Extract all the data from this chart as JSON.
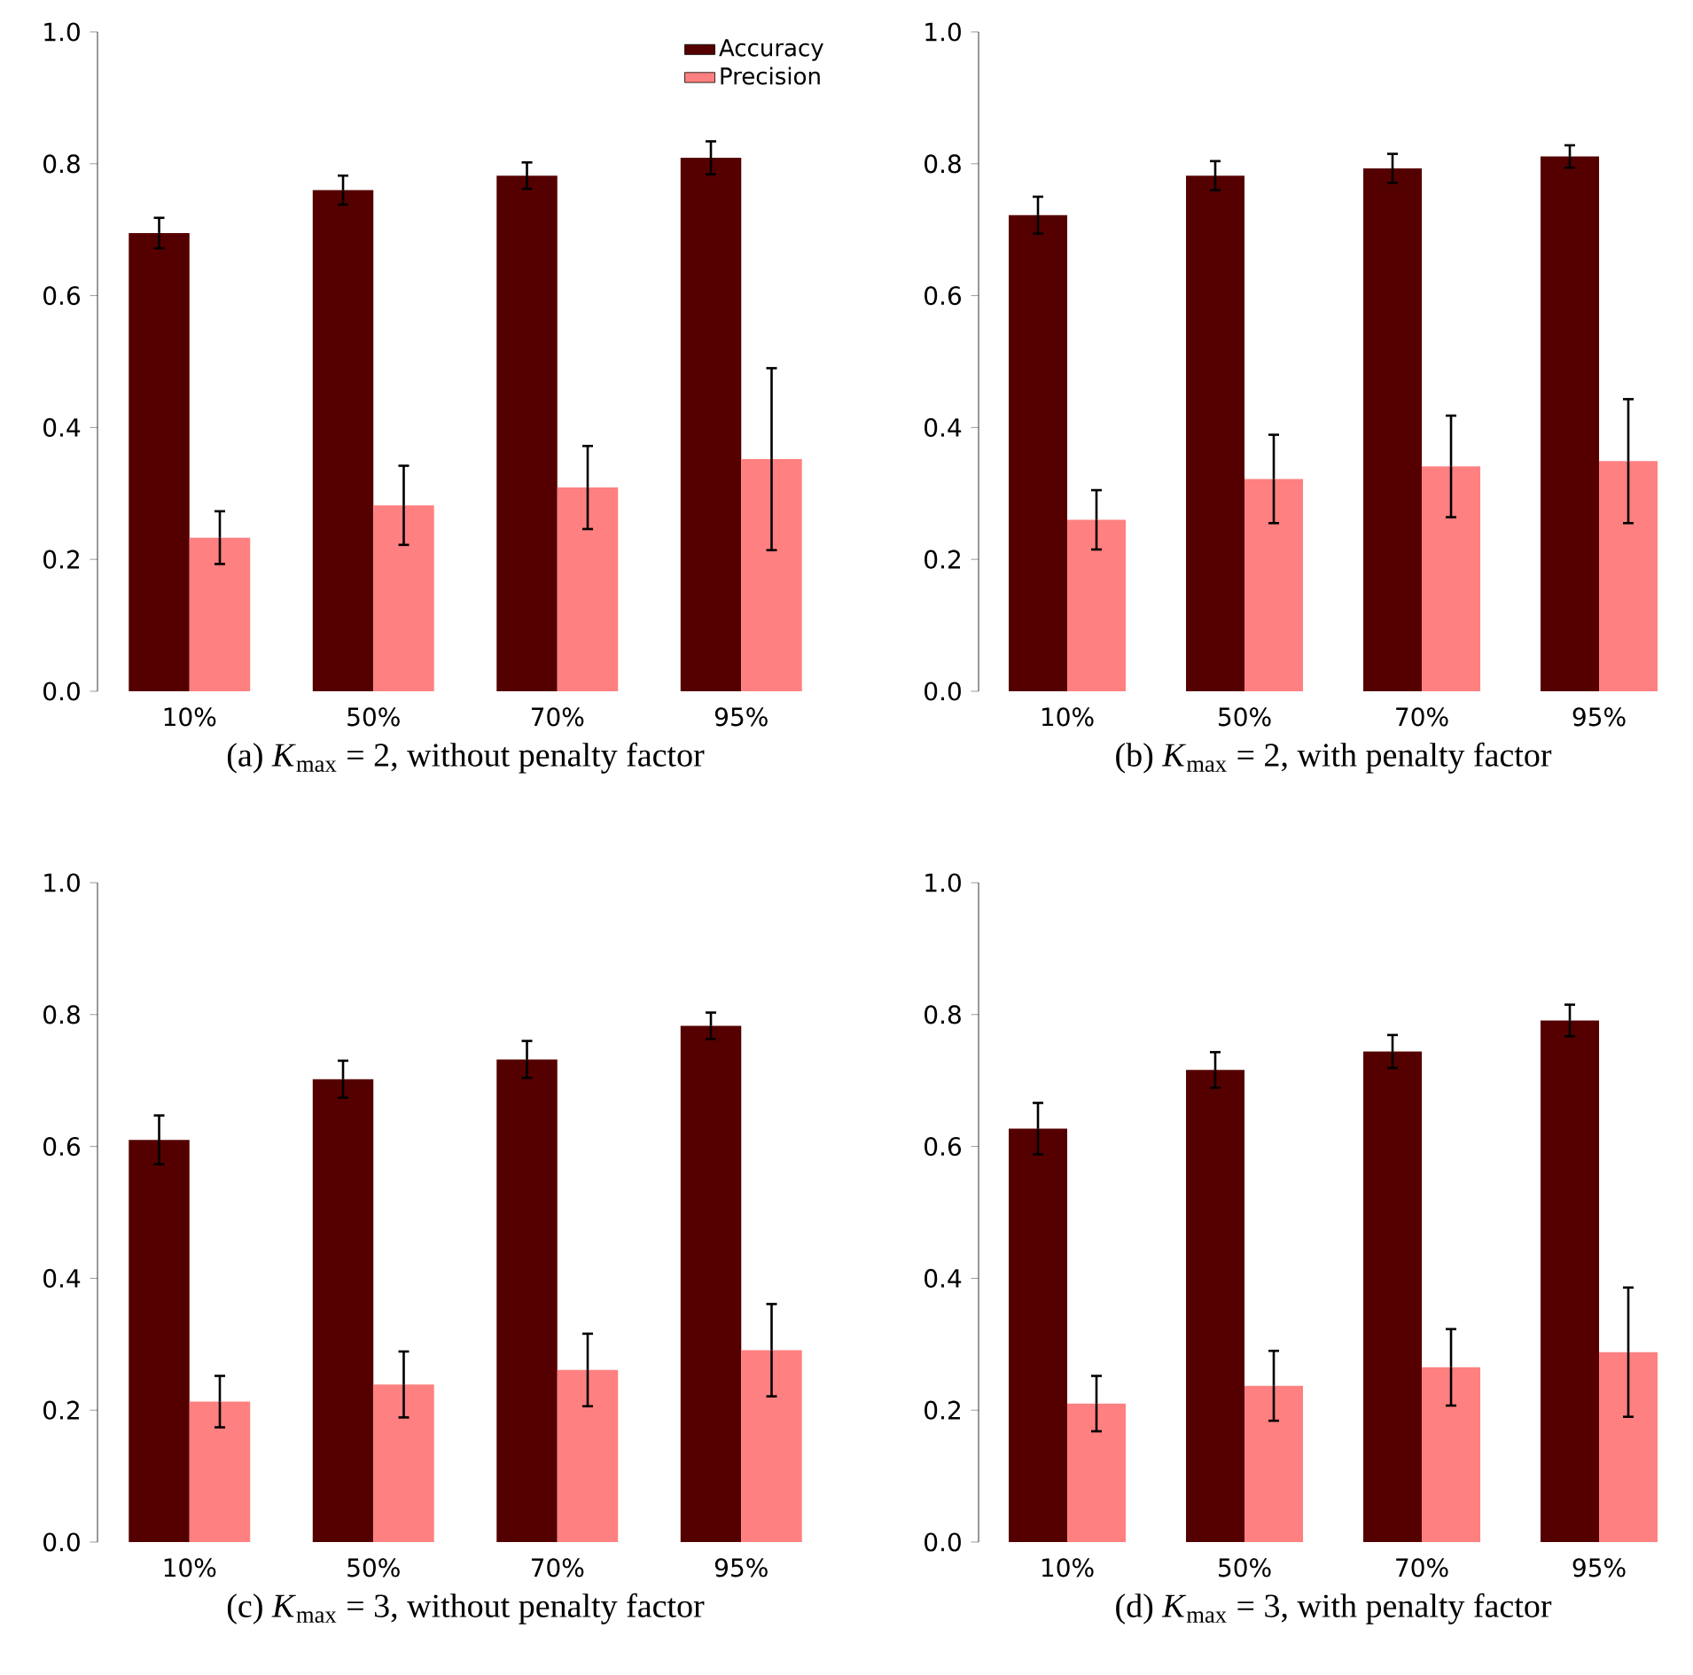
{
  "chart_data": [
    {
      "type": "bar",
      "title": "(a) *K*$_{max}$ = 2, without penalty factor",
      "categories": [
        "10%",
        "50%",
        "70%",
        "95%"
      ],
      "series": [
        {
          "name": "Accuracy",
          "color": "#550000",
          "values": [
            0.695,
            0.76,
            0.782,
            0.809
          ],
          "errors": [
            0.023,
            0.022,
            0.02,
            0.025
          ]
        },
        {
          "name": "Precision",
          "color": "#ff8080",
          "values": [
            0.233,
            0.282,
            0.309,
            0.352
          ],
          "errors": [
            0.04,
            0.06,
            0.063,
            0.138
          ]
        }
      ],
      "ylim": [
        0,
        1
      ],
      "yticks": [
        {
          "value": 0,
          "label": "0.0"
        },
        {
          "value": 0.2,
          "label": "0.2"
        },
        {
          "value": 0.4,
          "label": "0.4"
        },
        {
          "value": 0.6,
          "label": "0.6"
        },
        {
          "value": 0.8,
          "label": "0.8"
        },
        {
          "value": 1,
          "label": "1.0"
        }
      ],
      "legend": "top right"
    },
    {
      "type": "bar",
      "title": "(b) *K*$_{max}$ = 2, with penalty factor",
      "categories": [
        "10%",
        "50%",
        "70%",
        "95%"
      ],
      "series": [
        {
          "color": "#550000",
          "values": [
            0.722,
            0.782,
            0.793,
            0.811
          ],
          "errors": [
            0.028,
            0.022,
            0.022,
            0.017
          ]
        },
        {
          "color": "#ff8080",
          "values": [
            0.26,
            0.322,
            0.341,
            0.349
          ],
          "errors": [
            0.045,
            0.067,
            0.077,
            0.094
          ]
        }
      ],
      "ylim": [
        0,
        1
      ],
      "yticks": [
        {
          "value": 0,
          "label": "0.0"
        },
        {
          "value": 0.2,
          "label": "0.2"
        },
        {
          "value": 0.4,
          "label": "0.4"
        },
        {
          "value": 0.6,
          "label": "0.6"
        },
        {
          "value": 0.8,
          "label": "0.8"
        },
        {
          "value": 1,
          "label": "1.0"
        }
      ]
    },
    {
      "type": "bar",
      "title": "(c) *K*$_{max}$ = 3, without penalty factor",
      "categories": [
        "10%",
        "50%",
        "70%",
        "95%"
      ],
      "series": [
        {
          "color": "#550000",
          "values": [
            0.61,
            0.702,
            0.732,
            0.783
          ],
          "errors": [
            0.037,
            0.028,
            0.028,
            0.02
          ]
        },
        {
          "color": "#ff8080",
          "values": [
            0.213,
            0.239,
            0.261,
            0.291
          ],
          "errors": [
            0.039,
            0.05,
            0.055,
            0.07
          ]
        }
      ],
      "ylim": [
        0,
        1
      ],
      "yticks": [
        {
          "value": 0,
          "label": "0.0"
        },
        {
          "value": 0.2,
          "label": "0.2"
        },
        {
          "value": 0.4,
          "label": "0.4"
        },
        {
          "value": 0.6,
          "label": "0.6"
        },
        {
          "value": 0.8,
          "label": "0.8"
        },
        {
          "value": 1,
          "label": "1.0"
        }
      ]
    },
    {
      "type": "bar",
      "title": "(d) *K*$_{max}$ = 3, with penalty factor",
      "categories": [
        "10%",
        "50%",
        "70%",
        "95%"
      ],
      "series": [
        {
          "color": "#550000",
          "values": [
            0.627,
            0.716,
            0.744,
            0.791
          ],
          "errors": [
            0.039,
            0.027,
            0.025,
            0.024
          ]
        },
        {
          "color": "#ff8080",
          "values": [
            0.21,
            0.237,
            0.265,
            0.288
          ],
          "errors": [
            0.042,
            0.053,
            0.058,
            0.098
          ]
        }
      ],
      "ylim": [
        0,
        1
      ],
      "yticks": [
        {
          "value": 0,
          "label": "0.0"
        },
        {
          "value": 0.2,
          "label": "0.2"
        },
        {
          "value": 0.4,
          "label": "0.4"
        },
        {
          "value": 0.6,
          "label": "0.6"
        },
        {
          "value": 0.8,
          "label": "0.8"
        },
        {
          "value": 1,
          "label": "1.0"
        }
      ]
    }
  ]
}
